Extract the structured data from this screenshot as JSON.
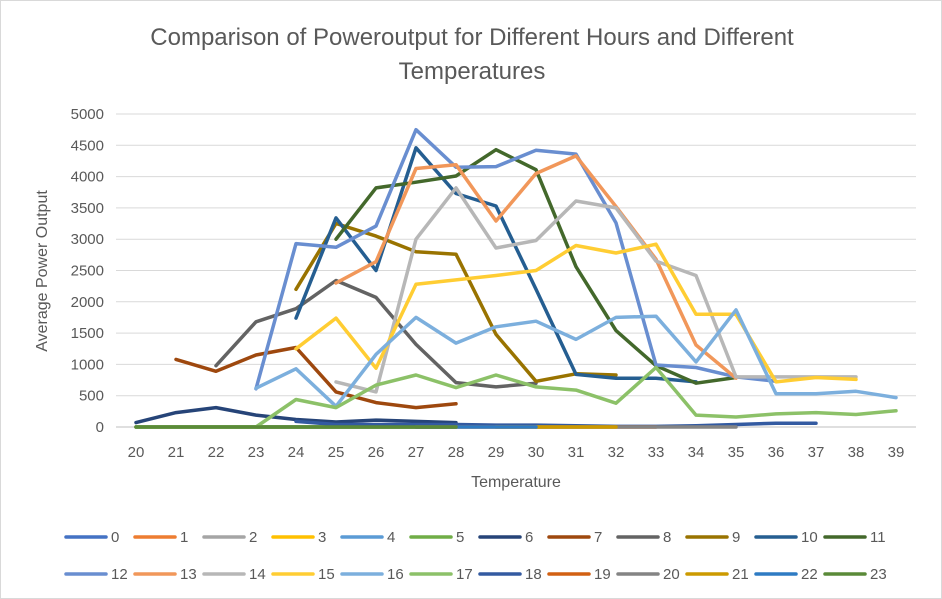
{
  "chart_data": {
    "type": "line",
    "title_lines": [
      "Comparison of Poweroutput for Different Hours and Different",
      "Temperatures"
    ],
    "xlabel": "Temperature",
    "ylabel": "Average Power Output",
    "categories": [
      "20",
      "21",
      "22",
      "23",
      "24",
      "25",
      "26",
      "27",
      "28",
      "29",
      "30",
      "31",
      "32",
      "33",
      "34",
      "35",
      "36",
      "37",
      "38",
      "39"
    ],
    "x_start": 20,
    "ylim": [
      0,
      5000
    ],
    "yticks": [
      0,
      500,
      1000,
      1500,
      2000,
      2500,
      3000,
      3500,
      4000,
      4500,
      5000
    ],
    "grid": true,
    "legend_position": "bottom",
    "series": [
      {
        "name": "0",
        "color": "#4472C4",
        "points": [
          [
            20,
            0
          ],
          [
            21,
            0
          ],
          [
            22,
            0
          ],
          [
            23,
            0
          ],
          [
            24,
            0
          ],
          [
            25,
            0
          ],
          [
            26,
            0
          ],
          [
            27,
            0
          ],
          [
            28,
            0
          ]
        ]
      },
      {
        "name": "1",
        "color": "#ED7D31",
        "points": [
          [
            20,
            0
          ],
          [
            21,
            0
          ],
          [
            22,
            0
          ],
          [
            23,
            0
          ],
          [
            24,
            0
          ],
          [
            25,
            0
          ],
          [
            26,
            0
          ],
          [
            27,
            0
          ],
          [
            28,
            0
          ]
        ]
      },
      {
        "name": "2",
        "color": "#A5A5A5",
        "points": [
          [
            20,
            0
          ],
          [
            21,
            0
          ],
          [
            22,
            0
          ],
          [
            23,
            0
          ],
          [
            24,
            0
          ],
          [
            25,
            0
          ],
          [
            26,
            0
          ],
          [
            27,
            0
          ],
          [
            28,
            0
          ]
        ]
      },
      {
        "name": "3",
        "color": "#FFC000",
        "points": [
          [
            20,
            0
          ],
          [
            21,
            0
          ],
          [
            22,
            0
          ],
          [
            23,
            0
          ],
          [
            24,
            0
          ],
          [
            25,
            0
          ],
          [
            26,
            0
          ],
          [
            27,
            0
          ],
          [
            28,
            0
          ]
        ]
      },
      {
        "name": "4",
        "color": "#5B9BD5",
        "points": [
          [
            20,
            0
          ],
          [
            21,
            0
          ],
          [
            22,
            0
          ],
          [
            23,
            0
          ],
          [
            24,
            0
          ],
          [
            25,
            0
          ],
          [
            26,
            0
          ],
          [
            27,
            0
          ],
          [
            28,
            0
          ]
        ]
      },
      {
        "name": "5",
        "color": "#70AD47",
        "points": [
          [
            20,
            0
          ],
          [
            21,
            0
          ],
          [
            22,
            0
          ],
          [
            23,
            0
          ],
          [
            24,
            0
          ],
          [
            25,
            0
          ],
          [
            26,
            0
          ],
          [
            27,
            0
          ],
          [
            28,
            0
          ]
        ]
      },
      {
        "name": "6",
        "color": "#264478",
        "points": [
          [
            20,
            70
          ],
          [
            21,
            230
          ],
          [
            22,
            310
          ],
          [
            23,
            190
          ],
          [
            24,
            120
          ],
          [
            25,
            80
          ],
          [
            26,
            110
          ],
          [
            27,
            90
          ],
          [
            28,
            70
          ]
        ]
      },
      {
        "name": "7",
        "color": "#9E480E",
        "points": [
          [
            21,
            1080
          ],
          [
            22,
            890
          ],
          [
            23,
            1150
          ],
          [
            24,
            1270
          ],
          [
            25,
            560
          ],
          [
            26,
            390
          ],
          [
            27,
            310
          ],
          [
            28,
            370
          ]
        ]
      },
      {
        "name": "8",
        "color": "#636363",
        "points": [
          [
            22,
            980
          ],
          [
            23,
            1680
          ],
          [
            24,
            1890
          ],
          [
            25,
            2340
          ],
          [
            26,
            2070
          ],
          [
            27,
            1320
          ],
          [
            28,
            710
          ],
          [
            29,
            640
          ],
          [
            30,
            700
          ]
        ]
      },
      {
        "name": "9",
        "color": "#997300",
        "points": [
          [
            24,
            2200
          ],
          [
            25,
            3250
          ],
          [
            26,
            3050
          ],
          [
            27,
            2800
          ],
          [
            28,
            2760
          ],
          [
            29,
            1480
          ],
          [
            30,
            730
          ],
          [
            31,
            850
          ],
          [
            32,
            830
          ]
        ]
      },
      {
        "name": "10",
        "color": "#255E91",
        "points": [
          [
            24,
            1740
          ],
          [
            25,
            3340
          ],
          [
            26,
            2500
          ],
          [
            27,
            4460
          ],
          [
            28,
            3730
          ],
          [
            29,
            3530
          ],
          [
            30,
            2200
          ],
          [
            31,
            840
          ],
          [
            32,
            780
          ],
          [
            33,
            780
          ],
          [
            34,
            720
          ]
        ]
      },
      {
        "name": "11",
        "color": "#43682B",
        "points": [
          [
            25,
            3000
          ],
          [
            26,
            3820
          ],
          [
            27,
            3910
          ],
          [
            28,
            4010
          ],
          [
            29,
            4430
          ],
          [
            30,
            4110
          ],
          [
            31,
            2560
          ],
          [
            32,
            1540
          ],
          [
            33,
            980
          ],
          [
            34,
            700
          ],
          [
            35,
            790
          ]
        ]
      },
      {
        "name": "12",
        "color": "#698ED0",
        "points": [
          [
            23,
            610
          ],
          [
            24,
            2930
          ],
          [
            25,
            2870
          ],
          [
            26,
            3210
          ],
          [
            27,
            4750
          ],
          [
            28,
            4150
          ],
          [
            29,
            4160
          ],
          [
            30,
            4420
          ],
          [
            31,
            4360
          ],
          [
            32,
            3260
          ],
          [
            33,
            990
          ],
          [
            34,
            950
          ],
          [
            35,
            800
          ],
          [
            36,
            730
          ]
        ]
      },
      {
        "name": "13",
        "color": "#F1975A",
        "points": [
          [
            25,
            2300
          ],
          [
            26,
            2640
          ],
          [
            27,
            4130
          ],
          [
            28,
            4190
          ],
          [
            29,
            3290
          ],
          [
            30,
            4050
          ],
          [
            31,
            4330
          ],
          [
            32,
            3520
          ],
          [
            33,
            2680
          ],
          [
            34,
            1310
          ],
          [
            35,
            780
          ]
        ]
      },
      {
        "name": "14",
        "color": "#B7B7B7",
        "points": [
          [
            25,
            720
          ],
          [
            26,
            560
          ],
          [
            27,
            3000
          ],
          [
            28,
            3820
          ],
          [
            29,
            2860
          ],
          [
            30,
            2980
          ],
          [
            31,
            3610
          ],
          [
            32,
            3500
          ],
          [
            33,
            2650
          ],
          [
            34,
            2420
          ],
          [
            35,
            800
          ],
          [
            36,
            800
          ],
          [
            37,
            800
          ],
          [
            38,
            800
          ]
        ]
      },
      {
        "name": "15",
        "color": "#FFCD33",
        "points": [
          [
            24,
            1250
          ],
          [
            25,
            1740
          ],
          [
            26,
            940
          ],
          [
            27,
            2280
          ],
          [
            28,
            2350
          ],
          [
            29,
            2420
          ],
          [
            30,
            2500
          ],
          [
            31,
            2900
          ],
          [
            32,
            2780
          ],
          [
            33,
            2920
          ],
          [
            34,
            1800
          ],
          [
            35,
            1800
          ],
          [
            36,
            720
          ],
          [
            37,
            790
          ],
          [
            38,
            760
          ]
        ]
      },
      {
        "name": "16",
        "color": "#7CAFDD",
        "points": [
          [
            23,
            620
          ],
          [
            24,
            930
          ],
          [
            25,
            330
          ],
          [
            26,
            1160
          ],
          [
            27,
            1750
          ],
          [
            28,
            1340
          ],
          [
            29,
            1600
          ],
          [
            30,
            1690
          ],
          [
            31,
            1400
          ],
          [
            32,
            1750
          ],
          [
            33,
            1770
          ],
          [
            34,
            1040
          ],
          [
            35,
            1870
          ],
          [
            36,
            530
          ],
          [
            37,
            530
          ],
          [
            38,
            570
          ],
          [
            39,
            470
          ]
        ]
      },
      {
        "name": "17",
        "color": "#8CC168",
        "points": [
          [
            20,
            0
          ],
          [
            21,
            0
          ],
          [
            22,
            0
          ],
          [
            23,
            0
          ],
          [
            24,
            440
          ],
          [
            25,
            310
          ],
          [
            26,
            670
          ],
          [
            27,
            830
          ],
          [
            28,
            630
          ],
          [
            29,
            830
          ],
          [
            30,
            640
          ],
          [
            31,
            590
          ],
          [
            32,
            380
          ],
          [
            33,
            950
          ],
          [
            34,
            190
          ],
          [
            35,
            160
          ],
          [
            36,
            210
          ],
          [
            37,
            230
          ],
          [
            38,
            200
          ],
          [
            39,
            260
          ]
        ]
      },
      {
        "name": "18",
        "color": "#335AA1",
        "points": [
          [
            24,
            90
          ],
          [
            25,
            40
          ],
          [
            26,
            40
          ],
          [
            27,
            40
          ],
          [
            28,
            40
          ],
          [
            29,
            30
          ],
          [
            30,
            30
          ],
          [
            31,
            20
          ],
          [
            32,
            10
          ],
          [
            33,
            10
          ],
          [
            34,
            20
          ],
          [
            35,
            40
          ],
          [
            36,
            60
          ],
          [
            37,
            60
          ]
        ]
      },
      {
        "name": "19",
        "color": "#D26012",
        "points": [
          [
            27,
            0
          ],
          [
            28,
            0
          ],
          [
            29,
            0
          ],
          [
            30,
            0
          ],
          [
            31,
            0
          ],
          [
            32,
            0
          ],
          [
            33,
            0
          ]
        ]
      },
      {
        "name": "20",
        "color": "#848484",
        "points": [
          [
            30,
            0
          ],
          [
            31,
            0
          ],
          [
            32,
            0
          ],
          [
            33,
            0
          ],
          [
            34,
            0
          ],
          [
            35,
            0
          ]
        ]
      },
      {
        "name": "21",
        "color": "#CC9A00",
        "points": [
          [
            29,
            0
          ],
          [
            30,
            0
          ],
          [
            31,
            0
          ],
          [
            32,
            0
          ]
        ]
      },
      {
        "name": "22",
        "color": "#2E7BC3",
        "points": [
          [
            27,
            0
          ],
          [
            28,
            0
          ],
          [
            29,
            0
          ],
          [
            30,
            0
          ]
        ]
      },
      {
        "name": "23",
        "color": "#5A8A38",
        "points": [
          [
            20,
            0
          ],
          [
            21,
            0
          ],
          [
            22,
            0
          ],
          [
            23,
            0
          ],
          [
            24,
            0
          ],
          [
            25,
            0
          ],
          [
            26,
            0
          ],
          [
            27,
            0
          ],
          [
            28,
            0
          ]
        ]
      }
    ]
  }
}
